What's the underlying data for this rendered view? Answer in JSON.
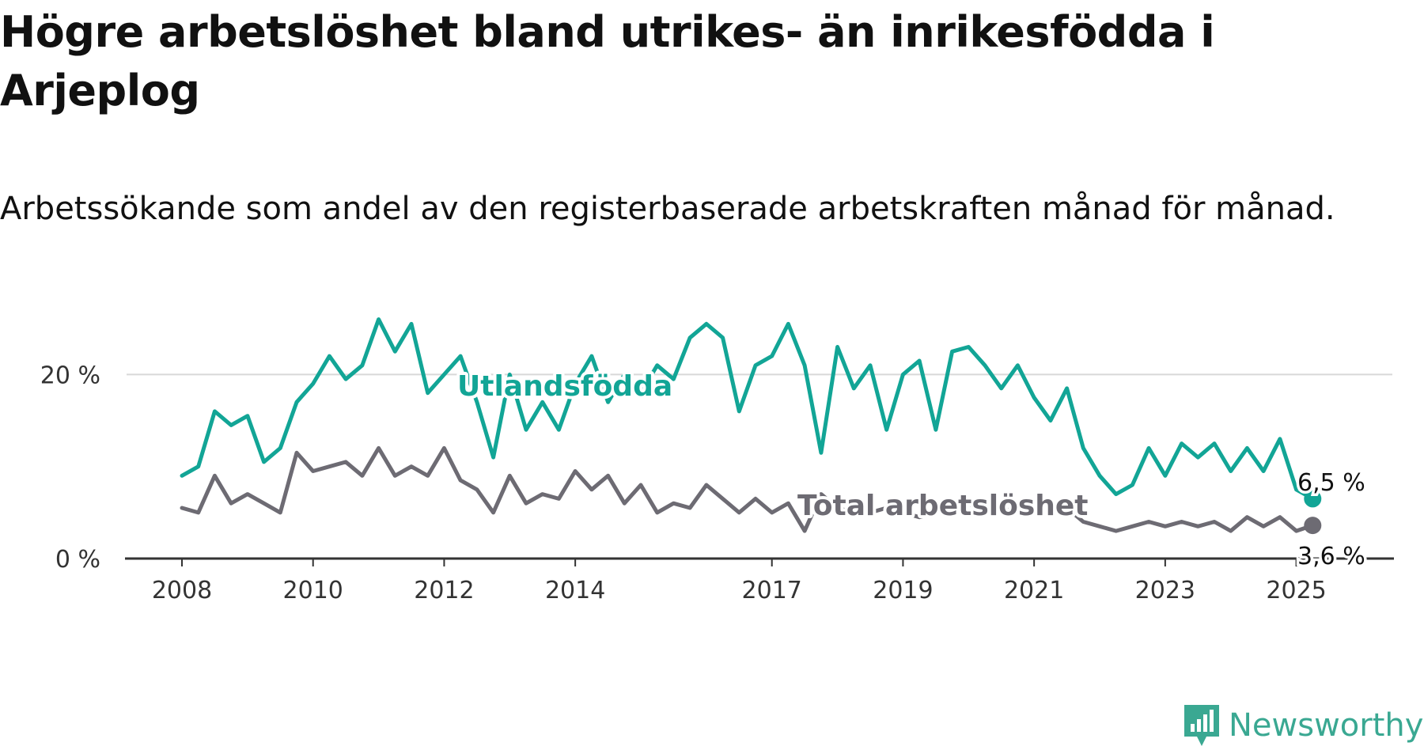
{
  "title": "Högre arbetslöshet bland utrikes- än inrikesfödda i Arjeplog",
  "subtitle": "Arbetssökande som andel av den registerbaserade arbetskraften månad för månad.",
  "brand": "Newsworthy",
  "colors": {
    "utrikes": "#12a596",
    "total": "#6d6b73",
    "axis": "#333333",
    "grid": "#d8d8d8",
    "brand": "#3aa892"
  },
  "chart_data": {
    "type": "line",
    "x_ticks": [
      "2008",
      "2010",
      "2012",
      "2014",
      "2017",
      "2019",
      "2021",
      "2023",
      "2025"
    ],
    "y_ticks": [
      "0 %",
      "20 %"
    ],
    "ylim": [
      0,
      27
    ],
    "grid": "horizontal",
    "series": [
      {
        "name": "Utlandsfödda",
        "end_label": "6,5 %",
        "values": [
          [
            "2008-01",
            9.0
          ],
          [
            "2008-04",
            10.0
          ],
          [
            "2008-07",
            16.0
          ],
          [
            "2008-10",
            14.5
          ],
          [
            "2009-01",
            15.5
          ],
          [
            "2009-04",
            10.5
          ],
          [
            "2009-07",
            12.0
          ],
          [
            "2009-10",
            17.0
          ],
          [
            "2010-01",
            19.0
          ],
          [
            "2010-04",
            22.0
          ],
          [
            "2010-07",
            19.5
          ],
          [
            "2010-10",
            21.0
          ],
          [
            "2011-01",
            26.0
          ],
          [
            "2011-04",
            22.5
          ],
          [
            "2011-07",
            25.5
          ],
          [
            "2011-10",
            18.0
          ],
          [
            "2012-01",
            20.0
          ],
          [
            "2012-04",
            22.0
          ],
          [
            "2012-07",
            17.0
          ],
          [
            "2012-10",
            11.0
          ],
          [
            "2013-01",
            20.0
          ],
          [
            "2013-04",
            14.0
          ],
          [
            "2013-07",
            17.0
          ],
          [
            "2013-10",
            14.0
          ],
          [
            "2014-01",
            19.0
          ],
          [
            "2014-04",
            22.0
          ],
          [
            "2014-07",
            17.0
          ],
          [
            "2014-10",
            20.0
          ],
          [
            "2015-01",
            18.0
          ],
          [
            "2015-04",
            21.0
          ],
          [
            "2015-07",
            19.5
          ],
          [
            "2015-10",
            24.0
          ],
          [
            "2016-01",
            25.5
          ],
          [
            "2016-04",
            24.0
          ],
          [
            "2016-07",
            16.0
          ],
          [
            "2016-10",
            21.0
          ],
          [
            "2017-01",
            22.0
          ],
          [
            "2017-04",
            25.5
          ],
          [
            "2017-07",
            21.0
          ],
          [
            "2017-10",
            11.5
          ],
          [
            "2018-01",
            23.0
          ],
          [
            "2018-04",
            18.5
          ],
          [
            "2018-07",
            21.0
          ],
          [
            "2018-10",
            14.0
          ],
          [
            "2019-01",
            20.0
          ],
          [
            "2019-04",
            21.5
          ],
          [
            "2019-07",
            14.0
          ],
          [
            "2019-10",
            22.5
          ],
          [
            "2020-01",
            23.0
          ],
          [
            "2020-04",
            21.0
          ],
          [
            "2020-07",
            18.5
          ],
          [
            "2020-10",
            21.0
          ],
          [
            "2021-01",
            17.5
          ],
          [
            "2021-04",
            15.0
          ],
          [
            "2021-07",
            18.5
          ],
          [
            "2021-10",
            12.0
          ],
          [
            "2022-01",
            9.0
          ],
          [
            "2022-04",
            7.0
          ],
          [
            "2022-07",
            8.0
          ],
          [
            "2022-10",
            12.0
          ],
          [
            "2023-01",
            9.0
          ],
          [
            "2023-04",
            12.5
          ],
          [
            "2023-07",
            11.0
          ],
          [
            "2023-10",
            12.5
          ],
          [
            "2024-01",
            9.5
          ],
          [
            "2024-04",
            12.0
          ],
          [
            "2024-07",
            9.5
          ],
          [
            "2024-10",
            13.0
          ],
          [
            "2025-01",
            7.5
          ],
          [
            "2025-04",
            6.5
          ]
        ]
      },
      {
        "name": "Total arbetslöshet",
        "end_label": "3,6 %",
        "values": [
          [
            "2008-01",
            5.5
          ],
          [
            "2008-04",
            5.0
          ],
          [
            "2008-07",
            9.0
          ],
          [
            "2008-10",
            6.0
          ],
          [
            "2009-01",
            7.0
          ],
          [
            "2009-04",
            6.0
          ],
          [
            "2009-07",
            5.0
          ],
          [
            "2009-10",
            11.5
          ],
          [
            "2010-01",
            9.5
          ],
          [
            "2010-04",
            10.0
          ],
          [
            "2010-07",
            10.5
          ],
          [
            "2010-10",
            9.0
          ],
          [
            "2011-01",
            12.0
          ],
          [
            "2011-04",
            9.0
          ],
          [
            "2011-07",
            10.0
          ],
          [
            "2011-10",
            9.0
          ],
          [
            "2012-01",
            12.0
          ],
          [
            "2012-04",
            8.5
          ],
          [
            "2012-07",
            7.5
          ],
          [
            "2012-10",
            5.0
          ],
          [
            "2013-01",
            9.0
          ],
          [
            "2013-04",
            6.0
          ],
          [
            "2013-07",
            7.0
          ],
          [
            "2013-10",
            6.5
          ],
          [
            "2014-01",
            9.5
          ],
          [
            "2014-04",
            7.5
          ],
          [
            "2014-07",
            9.0
          ],
          [
            "2014-10",
            6.0
          ],
          [
            "2015-01",
            8.0
          ],
          [
            "2015-04",
            5.0
          ],
          [
            "2015-07",
            6.0
          ],
          [
            "2015-10",
            5.5
          ],
          [
            "2016-01",
            8.0
          ],
          [
            "2016-04",
            6.5
          ],
          [
            "2016-07",
            5.0
          ],
          [
            "2016-10",
            6.5
          ],
          [
            "2017-01",
            5.0
          ],
          [
            "2017-04",
            6.0
          ],
          [
            "2017-07",
            3.0
          ],
          [
            "2017-10",
            7.0
          ],
          [
            "2018-01",
            5.5
          ],
          [
            "2018-04",
            5.0
          ],
          [
            "2018-07",
            5.0
          ],
          [
            "2018-10",
            5.5
          ],
          [
            "2019-01",
            5.0
          ],
          [
            "2019-04",
            4.5
          ],
          [
            "2019-07",
            5.0
          ],
          [
            "2019-10",
            5.5
          ],
          [
            "2020-01",
            6.0
          ],
          [
            "2020-04",
            5.0
          ],
          [
            "2020-07",
            5.5
          ],
          [
            "2020-10",
            5.0
          ],
          [
            "2021-01",
            5.5
          ],
          [
            "2021-04",
            5.0
          ],
          [
            "2021-07",
            5.5
          ],
          [
            "2021-10",
            4.0
          ],
          [
            "2022-01",
            3.5
          ],
          [
            "2022-04",
            3.0
          ],
          [
            "2022-07",
            3.5
          ],
          [
            "2022-10",
            4.0
          ],
          [
            "2023-01",
            3.5
          ],
          [
            "2023-04",
            4.0
          ],
          [
            "2023-07",
            3.5
          ],
          [
            "2023-10",
            4.0
          ],
          [
            "2024-01",
            3.0
          ],
          [
            "2024-04",
            4.5
          ],
          [
            "2024-07",
            3.5
          ],
          [
            "2024-10",
            4.5
          ],
          [
            "2025-01",
            3.0
          ],
          [
            "2025-04",
            3.6
          ]
        ]
      }
    ]
  }
}
